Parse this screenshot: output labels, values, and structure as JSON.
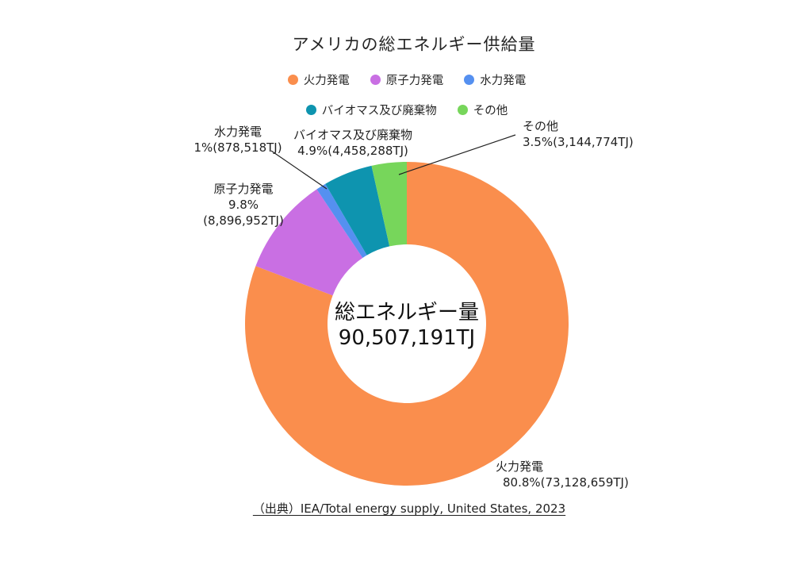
{
  "title": "アメリカの総エネルギー供給量",
  "chart_data": {
    "type": "pie",
    "subtype": "donut",
    "title": "アメリカの総エネルギー供給量",
    "unit": "TJ",
    "total_label": "総エネルギー量",
    "total_value": "90,507,191TJ",
    "start_angle_deg": 0,
    "direction": "clockwise",
    "legend_position": "top",
    "series": [
      {
        "name": "火力発電",
        "percent": 80.8,
        "value": 73128659,
        "display": "80.8%(73,128,659TJ)",
        "color": "#FA8E4D"
      },
      {
        "name": "原子力発電",
        "percent": 9.8,
        "value": 8896952,
        "display": "9.8%",
        "display2": "(8,896,952TJ)",
        "color": "#C96FE3"
      },
      {
        "name": "水力発電",
        "percent": 1,
        "value": 878518,
        "display": "1%(878,518TJ)",
        "color": "#5590F0"
      },
      {
        "name": "バイオマス及び廃棄物",
        "percent": 4.9,
        "value": 4458288,
        "display": "4.9%(4,458,288TJ)",
        "color": "#0E94AF"
      },
      {
        "name": "その他",
        "percent": 3.5,
        "value": 3144774,
        "display": "3.5%(3,144,774TJ)",
        "color": "#77D65B"
      }
    ]
  },
  "source": {
    "text": "（出典）IEA/Total energy supply, United States, 2023"
  }
}
